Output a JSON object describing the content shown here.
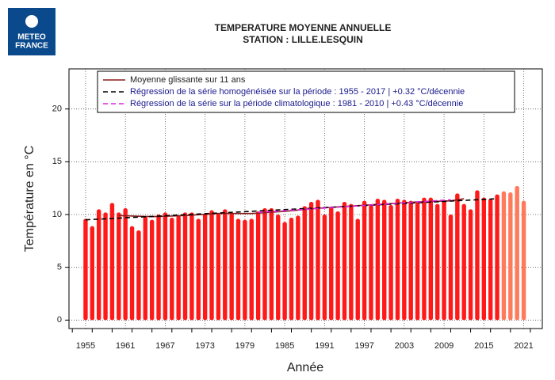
{
  "chart_data": {
    "type": "bar",
    "title": "TEMPERATURE MOYENNE ANNUELLE",
    "subtitle": "STATION : LILLE.LESQUIN",
    "logo": [
      "METEO",
      "FRANCE"
    ],
    "x_label": "Année",
    "y_label": "Température en °C",
    "x": [
      1955,
      1956,
      1957,
      1958,
      1959,
      1960,
      1961,
      1962,
      1963,
      1964,
      1965,
      1966,
      1967,
      1968,
      1969,
      1970,
      1971,
      1972,
      1973,
      1974,
      1975,
      1976,
      1977,
      1978,
      1979,
      1980,
      1981,
      1982,
      1983,
      1984,
      1985,
      1986,
      1987,
      1988,
      1989,
      1990,
      1991,
      1992,
      1993,
      1994,
      1995,
      1996,
      1997,
      1998,
      1999,
      2000,
      2001,
      2002,
      2003,
      2004,
      2005,
      2006,
      2007,
      2008,
      2009,
      2010,
      2011,
      2012,
      2013,
      2014,
      2015,
      2016,
      2017,
      2018,
      2019,
      2020,
      2021
    ],
    "values": [
      9.6,
      8.9,
      10.5,
      10.2,
      11.1,
      10.2,
      10.6,
      8.9,
      8.5,
      9.8,
      9.5,
      10.0,
      10.2,
      9.7,
      9.9,
      10.2,
      10.2,
      9.6,
      10.1,
      10.4,
      10.1,
      10.5,
      10.1,
      9.6,
      9.5,
      9.6,
      10.3,
      10.6,
      10.6,
      10.0,
      9.3,
      9.7,
      9.9,
      10.8,
      11.2,
      11.4,
      10.0,
      10.7,
      10.3,
      11.2,
      11.0,
      9.6,
      11.3,
      10.9,
      11.5,
      11.4,
      10.9,
      11.5,
      11.4,
      11.3,
      11.2,
      11.6,
      11.6,
      11.0,
      11.3,
      10.0,
      12.0,
      11.0,
      10.5,
      12.3,
      11.6,
      11.5,
      11.9,
      12.2,
      12.1,
      12.7,
      11.3
    ],
    "colors": [
      "#ff1a1a",
      "#ff1a1a",
      "#ff1a1a",
      "#ff1a1a",
      "#ff1a1a",
      "#ff1a1a",
      "#ff1a1a",
      "#ff1a1a",
      "#ff1a1a",
      "#ff1a1a",
      "#ff1a1a",
      "#ff1a1a",
      "#ff1a1a",
      "#ff1a1a",
      "#ff1a1a",
      "#ff1a1a",
      "#ff1a1a",
      "#ff1a1a",
      "#ff1a1a",
      "#ff1a1a",
      "#ff1a1a",
      "#ff1a1a",
      "#ff1a1a",
      "#ff1a1a",
      "#ff1a1a",
      "#ff1a1a",
      "#ff1a1a",
      "#ff1a1a",
      "#ff1a1a",
      "#ff1a1a",
      "#ff1a1a",
      "#ff1a1a",
      "#ff1a1a",
      "#ff1a1a",
      "#ff1a1a",
      "#ff1a1a",
      "#ff1a1a",
      "#ff1a1a",
      "#ff1a1a",
      "#ff1a1a",
      "#ff1a1a",
      "#ff1a1a",
      "#ff1a1a",
      "#ff1a1a",
      "#ff1a1a",
      "#ff1a1a",
      "#ff1a1a",
      "#ff1a1a",
      "#ff1a1a",
      "#ff1a1a",
      "#ff1a1a",
      "#ff1a1a",
      "#ff1a1a",
      "#ff1a1a",
      "#ff1a1a",
      "#ff1a1a",
      "#ff1a1a",
      "#ff1a1a",
      "#ff1a1a",
      "#ff1a1a",
      "#ff1a1a",
      "#ff1a1a",
      "#ff1a1a",
      "#ff7a5c",
      "#ff7a5c",
      "#ff7a5c",
      "#ff7a5c"
    ],
    "lines": [
      {
        "name": "Moyenne glissante sur 11 ans",
        "color": "#8b1a1a",
        "dash": "none",
        "x": [
          1960,
          1965,
          1970,
          1975,
          1980,
          1985,
          1990,
          1995,
          2000,
          2005,
          2010,
          2012
        ],
        "values": [
          9.9,
          9.8,
          9.9,
          10.1,
          10.1,
          10.3,
          10.6,
          10.8,
          11.0,
          11.2,
          11.3,
          11.5
        ]
      },
      {
        "name": "Régression de la série homogénéisée sur la période : 1955 - 2017 | +0.32 °C/décennie",
        "color": "#000000",
        "dash": "6 4",
        "x": [
          1955,
          2017
        ],
        "values": [
          9.5,
          11.5
        ]
      },
      {
        "name": "Régression de la série sur la période climatologique : 1981 - 2010 | +0.43 °C/décennie",
        "color": "#e020e0",
        "dash": "6 4",
        "x": [
          1981,
          2010
        ],
        "values": [
          10.2,
          11.4
        ]
      }
    ],
    "xlim": [
      1952.5,
      2023.8
    ],
    "xticks": [
      1955,
      1961,
      1967,
      1973,
      1979,
      1985,
      1991,
      1997,
      2003,
      2009,
      2015,
      2021
    ],
    "ylim": [
      -0.8,
      23.8
    ],
    "yticks": [
      0,
      5,
      10,
      15,
      20
    ],
    "grid": true
  }
}
